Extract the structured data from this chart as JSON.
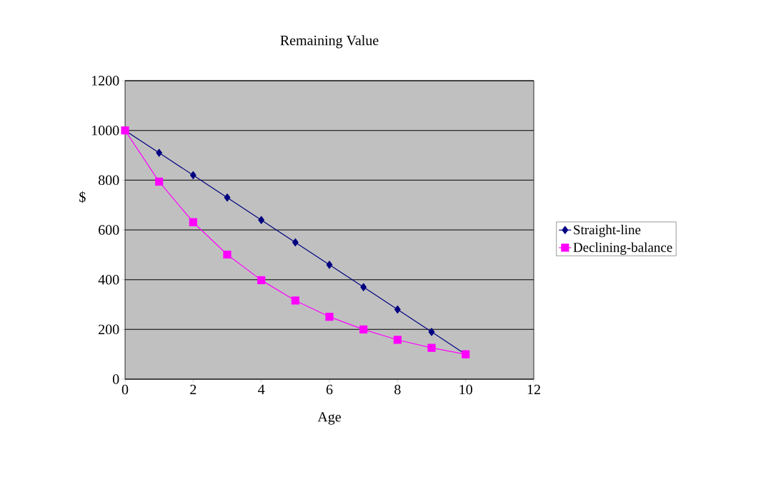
{
  "chart_data": {
    "type": "line",
    "title": "Remaining Value",
    "xlabel": "Age",
    "ylabel": "$",
    "x": [
      0,
      1,
      2,
      3,
      4,
      5,
      6,
      7,
      8,
      9,
      10
    ],
    "series": [
      {
        "name": "Straight-line",
        "color": "#000080",
        "marker": "diamond",
        "values": [
          1000,
          910,
          820,
          730,
          640,
          550,
          460,
          370,
          280,
          190,
          100
        ]
      },
      {
        "name": "Declining-balance",
        "color": "#ff00ff",
        "marker": "square",
        "values": [
          1000,
          794,
          631,
          501,
          398,
          316,
          251,
          200,
          158,
          126,
          100
        ]
      }
    ],
    "xlim": [
      0,
      12
    ],
    "xticks": [
      0,
      2,
      4,
      6,
      8,
      10,
      12
    ],
    "ylim": [
      0,
      1200
    ],
    "yticks": [
      0,
      200,
      400,
      600,
      800,
      1000,
      1200
    ],
    "grid": "y",
    "legend": "right",
    "line_style": "solid"
  }
}
